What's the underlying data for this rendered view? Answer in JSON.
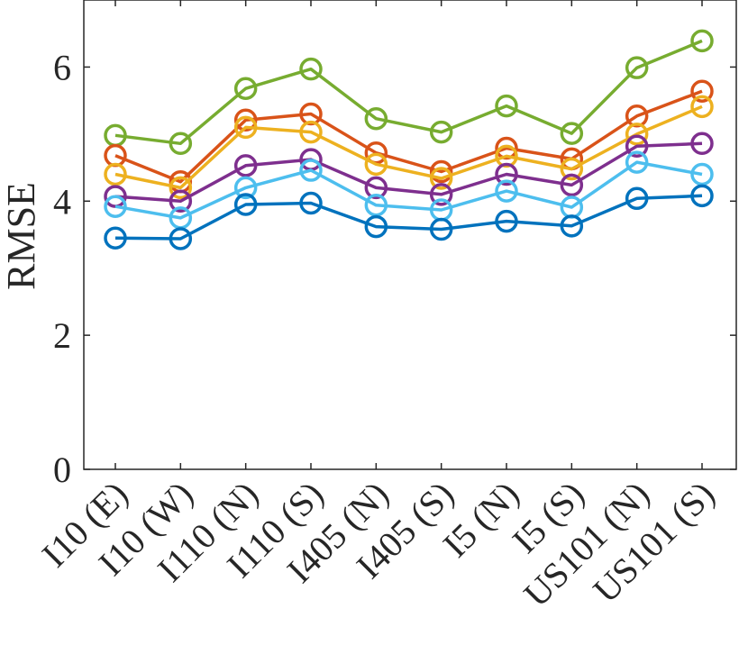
{
  "chart_data": {
    "type": "line",
    "title": "",
    "xlabel": "",
    "ylabel": "RMSE",
    "ylim": [
      0,
      7
    ],
    "yticks": [
      0,
      2,
      4,
      6
    ],
    "grid": false,
    "legend": "none",
    "categories": [
      "I10 (E)",
      "I10 (W)",
      "I110 (N)",
      "I110 (S)",
      "I405 (N)",
      "I405 (S)",
      "I5 (N)",
      "I5 (S)",
      "US101 (N)",
      "US101 (S)"
    ],
    "series": [
      {
        "color": "#77AC30",
        "values": [
          4.98,
          4.86,
          5.68,
          5.97,
          5.23,
          5.03,
          5.42,
          5.01,
          5.99,
          6.39
        ]
      },
      {
        "color": "#D95319",
        "values": [
          4.68,
          4.29,
          5.21,
          5.3,
          4.72,
          4.44,
          4.79,
          4.63,
          5.27,
          5.64
        ]
      },
      {
        "color": "#EDB120",
        "values": [
          4.4,
          4.2,
          5.1,
          5.03,
          4.55,
          4.34,
          4.67,
          4.48,
          5.0,
          5.41
        ]
      },
      {
        "color": "#7E2F8E",
        "values": [
          4.07,
          4.0,
          4.53,
          4.62,
          4.2,
          4.1,
          4.4,
          4.24,
          4.82,
          4.86
        ]
      },
      {
        "color": "#4DBEEE",
        "values": [
          3.92,
          3.75,
          4.2,
          4.46,
          3.94,
          3.87,
          4.15,
          3.91,
          4.58,
          4.4
        ]
      },
      {
        "color": "#0072BD",
        "values": [
          3.45,
          3.44,
          3.95,
          3.97,
          3.62,
          3.58,
          3.7,
          3.63,
          4.04,
          4.08
        ]
      }
    ]
  }
}
